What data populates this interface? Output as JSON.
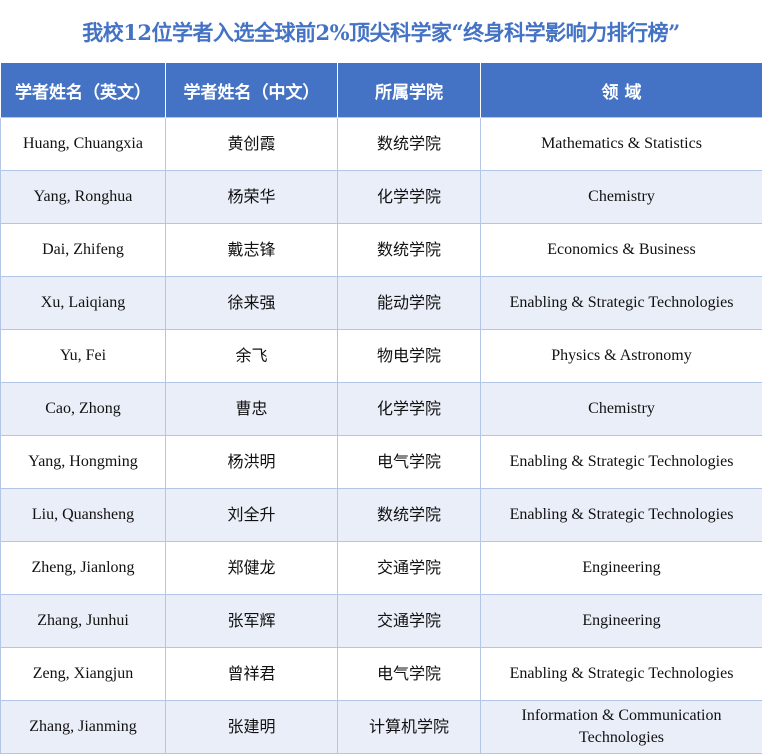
{
  "title": "我校12位学者入选全球前2%顶尖科学家“终身科学影响力排行榜”",
  "colors": {
    "header_bg": "#4472C4",
    "title": "#4472C4",
    "alt_row": "#E9EEF8",
    "border": "#B4C6E7"
  },
  "headers": [
    "学者姓名（英文）",
    "学者姓名（中文）",
    "所属学院",
    "领 域"
  ],
  "rows": [
    [
      "Huang, Chuangxia",
      "黄创霞",
      "数统学院",
      "Mathematics & Statistics"
    ],
    [
      "Yang, Ronghua",
      "杨荣华",
      "化学学院",
      "Chemistry"
    ],
    [
      "Dai, Zhifeng",
      "戴志锋",
      "数统学院",
      "Economics & Business"
    ],
    [
      "Xu, Laiqiang",
      "徐来强",
      "能动学院",
      "Enabling & Strategic Technologies"
    ],
    [
      "Yu, Fei",
      "余飞",
      "物电学院",
      "Physics & Astronomy"
    ],
    [
      "Cao, Zhong",
      "曹忠",
      "化学学院",
      "Chemistry"
    ],
    [
      "Yang, Hongming",
      "杨洪明",
      "电气学院",
      "Enabling & Strategic Technologies"
    ],
    [
      "Liu, Quansheng",
      "刘全升",
      "数统学院",
      "Enabling & Strategic Technologies"
    ],
    [
      "Zheng, Jianlong",
      "郑健龙",
      "交通学院",
      "Engineering"
    ],
    [
      "Zhang, Junhui",
      "张军辉",
      "交通学院",
      "Engineering"
    ],
    [
      "Zeng, Xiangjun",
      "曾祥君",
      "电气学院",
      "Enabling & Strategic Technologies"
    ],
    [
      "Zhang, Jianming",
      "张建明",
      "计算机学院",
      "Information & Communication Technologies"
    ]
  ]
}
